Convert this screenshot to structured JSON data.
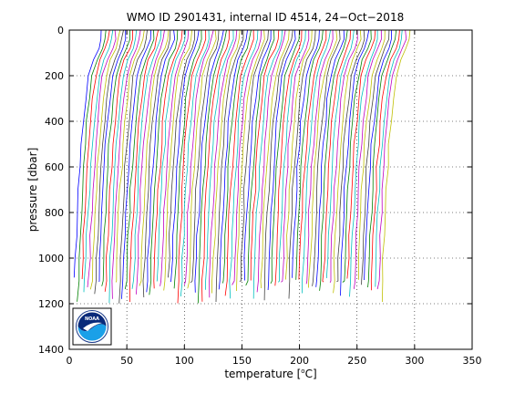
{
  "chart_data": {
    "type": "line",
    "title": "WMO ID 2901431, internal ID 4514, 24−Oct−2018",
    "xlabel": "temperature [°C]",
    "xlabel_parts": {
      "before": "temperature [",
      "degree": "o",
      "after": "C]"
    },
    "ylabel": "pressure [dbar]",
    "xlim": [
      0,
      350
    ],
    "ylim": [
      0,
      1400
    ],
    "y_reversed": true,
    "grid": true,
    "x_ticks": [
      0,
      50,
      100,
      150,
      200,
      250,
      300,
      350
    ],
    "y_ticks": [
      0,
      200,
      400,
      600,
      800,
      1000,
      1200,
      1400
    ],
    "series_style": "waterfall",
    "profile_count": 90,
    "profile_offset_start": 0,
    "profile_offset_step": 3,
    "profile_shape": {
      "pressure": [
        0,
        40,
        80,
        130,
        200,
        300,
        400,
        500,
        600,
        700,
        800,
        900,
        1000,
        1100,
        1200
      ],
      "temperature": [
        28.5,
        28.0,
        25.5,
        21.0,
        17.0,
        14.5,
        12.5,
        10.8,
        9.5,
        8.3,
        7.3,
        6.4,
        5.6,
        4.8,
        4.2
      ]
    },
    "colors": [
      "#0000ff",
      "#008000",
      "#ff0000",
      "#00bfbf",
      "#bf00bf",
      "#bfbf00",
      "#404040"
    ]
  },
  "logo": {
    "name": "noaa-logo",
    "text": "NOAA"
  }
}
